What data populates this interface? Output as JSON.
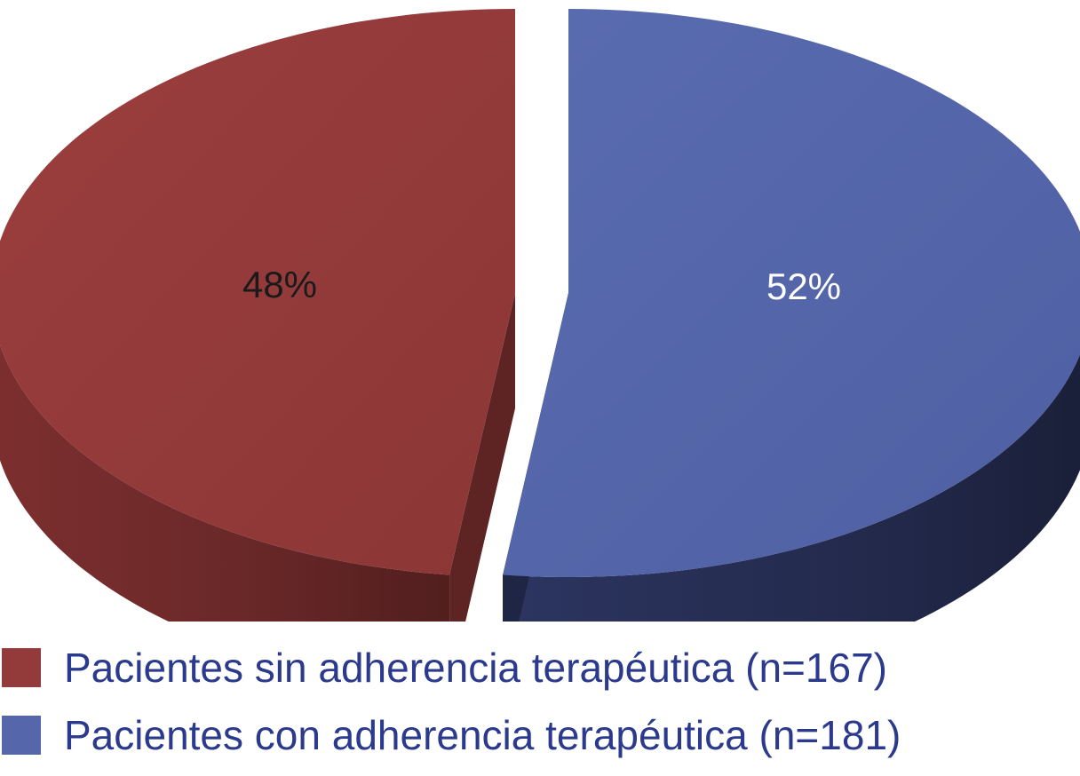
{
  "chart_data": {
    "type": "pie",
    "style": "3d-exploded",
    "title": "",
    "legend_position": "bottom",
    "slices": [
      {
        "label": "Pacientes sin adherencia terapéutica (n=167)",
        "value": 48,
        "value_label": "48%",
        "color": "#933a3a",
        "label_color": "#1a1a1a"
      },
      {
        "label": "Pacientes con adherencia terapéutica (n=181)",
        "value": 52,
        "value_label": "52%",
        "color": "#5566aa",
        "label_color": "#ffffff"
      }
    ]
  },
  "legend": {
    "items": [
      {
        "label": "Pacientes sin adherencia terapéutica (n=167)",
        "color": "#933a3a"
      },
      {
        "label": "Pacientes con adherencia terapéutica (n=181)",
        "color": "#5566aa"
      }
    ]
  }
}
